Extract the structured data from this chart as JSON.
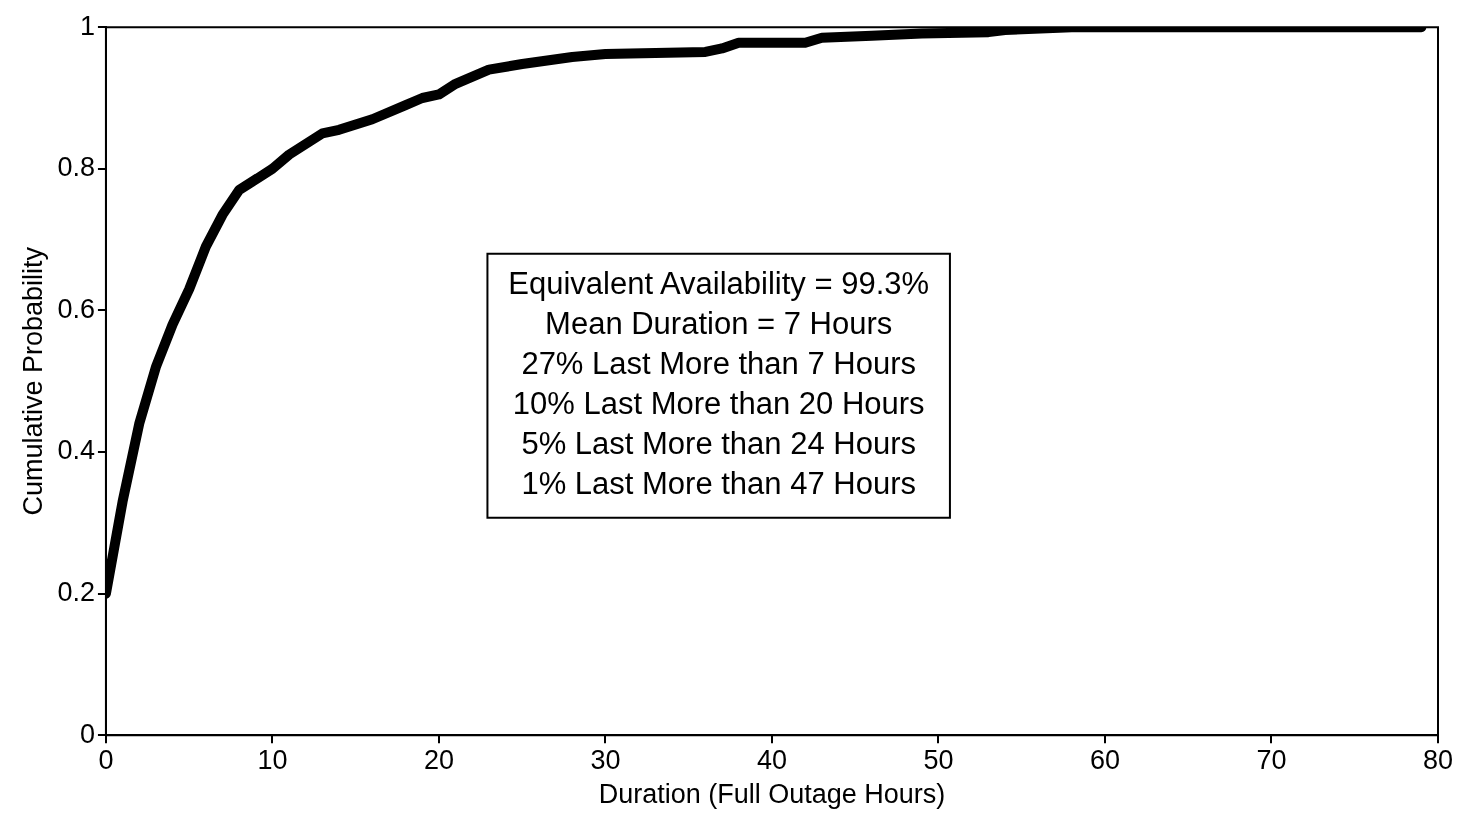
{
  "chart_data": {
    "type": "line",
    "xlabel": "Duration (Full Outage Hours)",
    "ylabel": "Cumulative Probability",
    "x": [
      0,
      1,
      2,
      3,
      4,
      5,
      6,
      7,
      8,
      10,
      11,
      13,
      14,
      16,
      18,
      19,
      20,
      21,
      23,
      25,
      28,
      30,
      36,
      37,
      38,
      42,
      43,
      46,
      49,
      53,
      54,
      58,
      79
    ],
    "series": [
      {
        "color": "#000000",
        "values": [
          0.2,
          0.33,
          0.44,
          0.52,
          0.58,
          0.63,
          0.69,
          0.735,
          0.77,
          0.8,
          0.82,
          0.85,
          0.855,
          0.87,
          0.89,
          0.9,
          0.905,
          0.92,
          0.94,
          0.948,
          0.958,
          0.962,
          0.965,
          0.97,
          0.978,
          0.978,
          0.985,
          0.988,
          0.991,
          0.993,
          0.996,
          1,
          1
        ]
      }
    ],
    "xlim": [
      0,
      80
    ],
    "xticks": [
      0,
      10,
      20,
      30,
      40,
      50,
      60,
      70,
      80
    ],
    "ylim": [
      0,
      1
    ],
    "yticks": [
      0,
      0.2,
      0.4,
      0.6,
      0.8,
      1
    ],
    "marker": "none",
    "line_style": "solid",
    "legend": false,
    "annotations": [
      "Equivalent Availability = 99.3%",
      "Mean Duration = 7 Hours",
      "27% Last More than 7 Hours",
      "10% Last More than 20 Hours",
      "5% Last More than 24 Hours",
      "1% Last More than 47 Hours"
    ]
  }
}
